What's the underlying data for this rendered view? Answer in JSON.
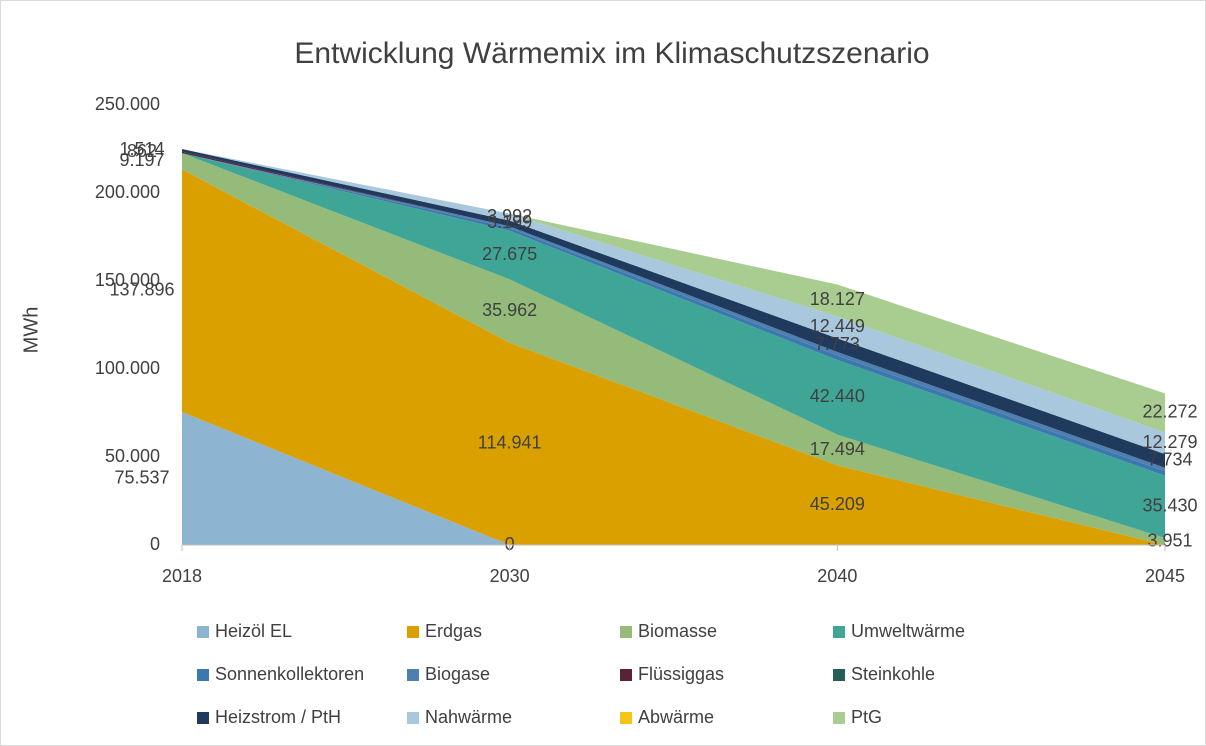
{
  "chart_data": {
    "type": "stacked_area",
    "title": "Entwicklung Wärmemix im Klimaschutzszenario",
    "y_label": "MWh",
    "categories": [
      "2018",
      "2030",
      "2040",
      "2045"
    ],
    "ylim": [
      0,
      250000
    ],
    "yticks": [
      {
        "value": 0,
        "label": "0"
      },
      {
        "value": 50000,
        "label": "50.000"
      },
      {
        "value": 100000,
        "label": "100.000"
      },
      {
        "value": 150000,
        "label": "150.000"
      },
      {
        "value": 200000,
        "label": "200.000"
      },
      {
        "value": 250000,
        "label": "250.000"
      }
    ],
    "grid": false,
    "legend": "bottom",
    "series": [
      {
        "name": "Heizöl EL",
        "color": "#8db4d1",
        "values": [
          75537,
          0,
          0,
          0
        ],
        "value_labels": [
          "75.537",
          "0",
          null,
          null
        ]
      },
      {
        "name": "Erdgas",
        "color": "#d9a000",
        "values": [
          137896,
          114941,
          45209,
          0
        ],
        "value_labels": [
          "137.896",
          "114.941",
          "45.209",
          null
        ]
      },
      {
        "name": "Biomasse",
        "color": "#95bb7a",
        "values": [
          9197,
          35962,
          17494,
          3951
        ],
        "value_labels": [
          "9.197",
          "35.962",
          "17.494",
          "3.951"
        ]
      },
      {
        "name": "Umweltwärme",
        "color": "#3fa597",
        "values": [
          0,
          27675,
          42440,
          35430
        ],
        "value_labels": [
          null,
          "27.675",
          "42.440",
          "35.430"
        ]
      },
      {
        "name": "Sonnenkollektoren",
        "color": "#3c78b0",
        "values": [
          0,
          1500,
          2500,
          2500
        ],
        "value_labels": [
          null,
          null,
          null,
          null
        ]
      },
      {
        "name": "Biogase",
        "color": "#4f7fae",
        "values": [
          0,
          1000,
          2000,
          2000
        ],
        "value_labels": [
          null,
          null,
          null,
          null
        ]
      },
      {
        "name": "Flüssiggas",
        "color": "#5a2236",
        "values": [
          862,
          0,
          0,
          0
        ],
        "value_labels": [
          "862",
          null,
          null,
          null
        ]
      },
      {
        "name": "Steinkohle",
        "color": "#245e56",
        "values": [
          0,
          0,
          0,
          0
        ],
        "value_labels": [
          null,
          null,
          null,
          null
        ]
      },
      {
        "name": "Heizstrom / PtH",
        "color": "#1f3a5c",
        "values": [
          1514,
          3199,
          7773,
          7734
        ],
        "value_labels": [
          "1.514",
          "3.199",
          "7.773",
          "7.734"
        ]
      },
      {
        "name": "Nahwärme",
        "color": "#a9c8de",
        "values": [
          0,
          3992,
          12449,
          12279
        ],
        "value_labels": [
          null,
          "3.992",
          "12.449",
          "12.279"
        ]
      },
      {
        "name": "Abwärme",
        "color": "#f5c518",
        "values": [
          0,
          0,
          0,
          0
        ],
        "value_labels": [
          null,
          null,
          null,
          null
        ]
      },
      {
        "name": "PtG",
        "color": "#a9cc90",
        "values": [
          0,
          0,
          18127,
          22272
        ],
        "value_labels": [
          null,
          null,
          "18.127",
          "22.272"
        ]
      }
    ]
  }
}
